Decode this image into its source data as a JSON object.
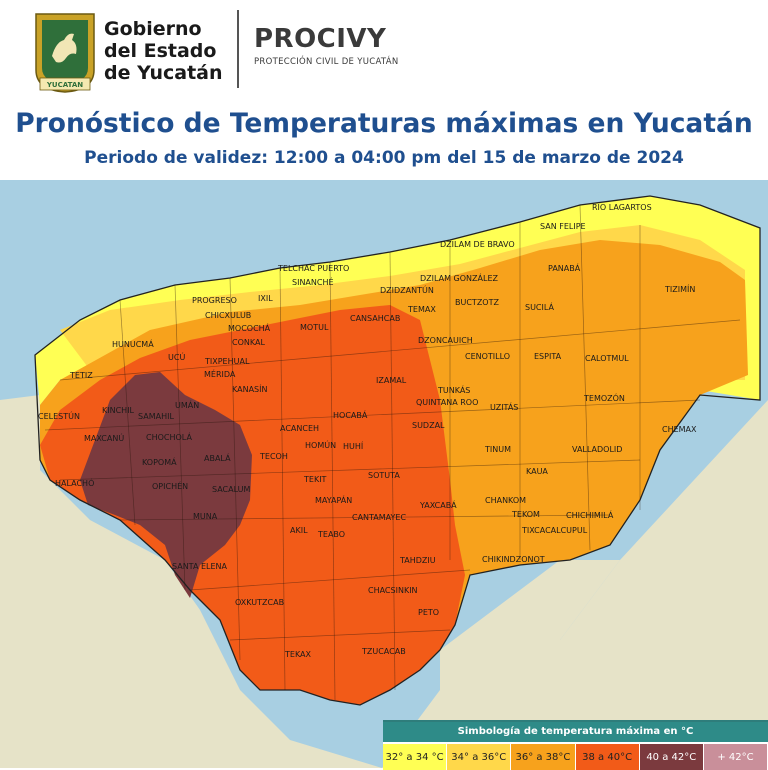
{
  "header": {
    "gov_line1": "Gobierno",
    "gov_line2": "del Estado",
    "gov_line3": "de Yucatán",
    "shield_banner": "YUCATAN",
    "procivy_title": "PROCIVY",
    "procivy_subtitle": "PROTECCIÓN CIVIL DE YUCATÁN"
  },
  "title": "Pronóstico de Temperaturas máximas en Yucatán",
  "subtitle": "Periodo de validez: 12:00 a 04:00 pm del 15 de marzo de 2024",
  "colors": {
    "sea": "#a8cfe2",
    "land": "#e6e3c8",
    "t32_34": "#ffff54",
    "t34_36": "#ffd84a",
    "t36_38": "#f7a21c",
    "t38_40": "#f25b18",
    "t40_42": "#7b3a3e",
    "t42plus": "#c98f9a",
    "brand_blue": "#1f4f8f",
    "legend_header": "#2e8b88"
  },
  "map": {
    "municipalities": [
      "RIO LAGARTOS",
      "SAN FELIPE",
      "DZILAM DE BRAVO",
      "TELCHAC PUERTO",
      "SINANCHÉ",
      "DZILAM GONZÁLEZ",
      "DZIDZANTÚN",
      "PANABÁ",
      "TIZIMÍN",
      "PROGRESO",
      "IXIL",
      "TEMAX",
      "BUCTZOTZ",
      "SUCILÁ",
      "CHICXULUB",
      "MOCOCHÁ",
      "HUNUCMÁ",
      "CONKAL",
      "MOTUL",
      "CANSAHCAB",
      "DZONCAUICH",
      "CENOTILLO",
      "ESPITA",
      "CALOTMUL",
      "UCÚ",
      "KANASÍN",
      "TIXPEHUAL",
      "MÉRIDA",
      "IZAMAL",
      "TUNKÁS",
      "QUINTANA ROO",
      "TEMOZÓN",
      "TETIZ",
      "KINCHIL",
      "UMÁN",
      "CELESTÚN",
      "SAMAHIL",
      "CHOCHOLÁ",
      "ACANCEH",
      "HOCABÁ",
      "SUDZAL",
      "UZITÁS",
      "CHEMAX",
      "KOPOMÁ",
      "ABALÁ",
      "TECOH",
      "HOMÚN",
      "HUHÍ",
      "CANTAMAYEC",
      "TINUM",
      "VALLADOLID",
      "MAXCANÚ",
      "OPICHÉN",
      "SACALUM",
      "TEKIT",
      "SOTUTA",
      "YAXCABÁ",
      "KAUA",
      "HALACHÓ",
      "MUNA",
      "MAYAPÁN",
      "CHANKOM",
      "TEKOM",
      "CHICHIMILÁ",
      "TEABO",
      "TIXCACALCUPUL",
      "SANTA ELENA",
      "CHIKINDZONOT",
      "AKIL",
      "TAHDZIU",
      "OXKUTZCAB",
      "CHACSINKIN",
      "PETO",
      "TEKAX",
      "TZUCACAB"
    ]
  },
  "legend": {
    "title": "Simbología de temperatura máxima en °C",
    "items": [
      {
        "label": "32° a 34 °C"
      },
      {
        "label": "34° a 36°C"
      },
      {
        "label": "36° a 38°C"
      },
      {
        "label": "38 a 40°C"
      },
      {
        "label": "40 a 42°C"
      },
      {
        "label": "+ 42°C"
      }
    ]
  }
}
